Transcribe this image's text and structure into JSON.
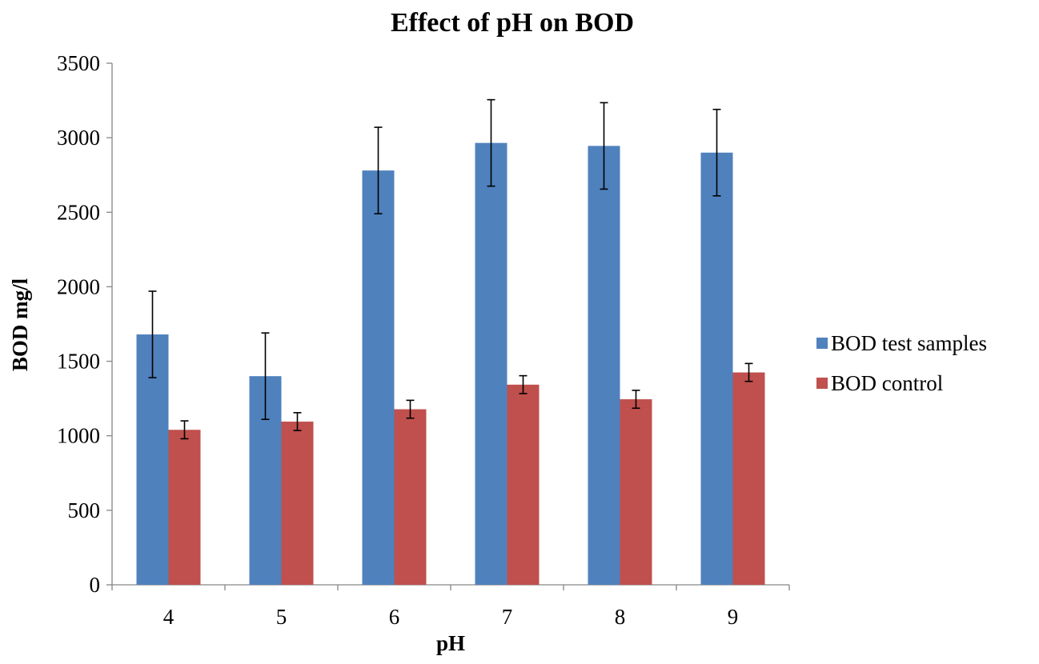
{
  "chart_data": {
    "type": "bar",
    "title": "Effect of pH on BOD",
    "xlabel": "pH",
    "ylabel": "BOD mg/l",
    "categories": [
      "4",
      "5",
      "6",
      "7",
      "8",
      "9"
    ],
    "ylim": [
      0,
      3500
    ],
    "yticks": [
      0,
      500,
      1000,
      1500,
      2000,
      2500,
      3000,
      3500
    ],
    "ytick_labels": [
      "0",
      "500",
      "1000",
      "1500",
      "2000",
      "2500",
      "3000",
      "3500"
    ],
    "grid": false,
    "legend_position": "right",
    "series": [
      {
        "name": "BOD test samples",
        "color": "#4F81BD",
        "values": [
          1680,
          1400,
          2780,
          2965,
          2945,
          2900
        ],
        "error": [
          290,
          290,
          290,
          290,
          290,
          290
        ]
      },
      {
        "name": "BOD control",
        "color": "#C0504D",
        "values": [
          1040,
          1095,
          1178,
          1343,
          1245,
          1425
        ],
        "error": [
          60,
          60,
          60,
          60,
          60,
          60
        ]
      }
    ]
  }
}
